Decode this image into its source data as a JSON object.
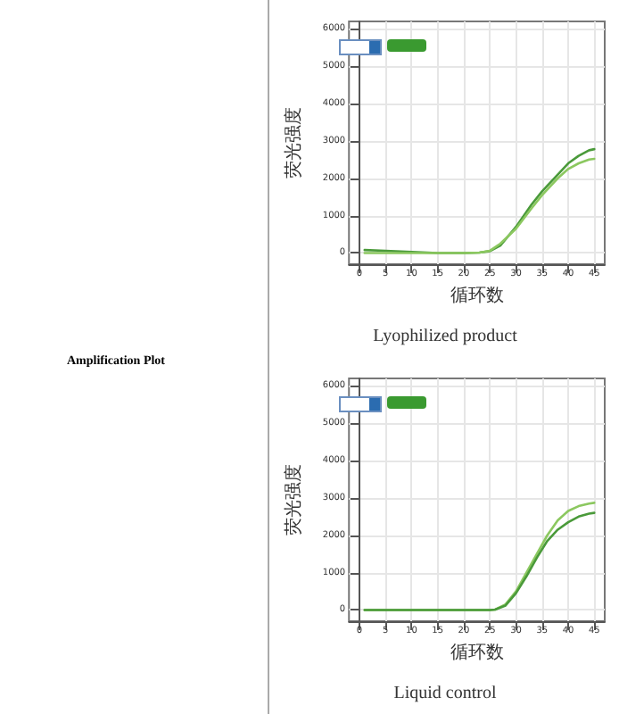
{
  "chart_data": [
    {
      "type": "line",
      "title": "Lyophilized product",
      "xlabel": "循环数",
      "ylabel": "荧光强度",
      "annotations": [
        "Amplification Plot"
      ],
      "x": [
        1,
        5,
        10,
        15,
        20,
        23,
        25,
        27,
        30,
        33,
        35,
        38,
        40,
        42,
        44,
        45
      ],
      "series": [
        {
          "color": "#4a9a3a",
          "values": [
            80,
            60,
            30,
            0,
            0,
            10,
            50,
            200,
            700,
            1300,
            1650,
            2100,
            2400,
            2600,
            2750,
            2780
          ]
        },
        {
          "color": "#8cc860",
          "values": [
            0,
            0,
            0,
            0,
            0,
            10,
            60,
            250,
            650,
            1200,
            1550,
            2000,
            2250,
            2400,
            2500,
            2520
          ]
        }
      ],
      "xlim": [
        -2,
        47
      ],
      "ylim": [
        -300,
        6200
      ],
      "xticks": [
        0,
        5,
        10,
        15,
        20,
        25,
        30,
        35,
        40,
        45
      ],
      "yticks": [
        0,
        1000,
        2000,
        3000,
        4000,
        5000,
        6000
      ],
      "grid": true,
      "marker": "none",
      "line_style": "solid"
    },
    {
      "type": "line",
      "title": "Liquid control",
      "xlabel": "循环数",
      "ylabel": "荧光强度",
      "x": [
        1,
        5,
        10,
        15,
        20,
        25,
        26,
        28,
        30,
        32,
        34,
        36,
        38,
        40,
        42,
        44,
        45
      ],
      "series": [
        {
          "color": "#8cc860",
          "values": [
            0,
            0,
            0,
            0,
            0,
            0,
            10,
            150,
            500,
            1000,
            1500,
            2000,
            2400,
            2650,
            2780,
            2850,
            2870
          ]
        },
        {
          "color": "#4a9a3a",
          "values": [
            0,
            0,
            0,
            0,
            0,
            0,
            10,
            120,
            450,
            900,
            1400,
            1850,
            2150,
            2350,
            2500,
            2580,
            2600
          ]
        }
      ],
      "xlim": [
        -2,
        47
      ],
      "ylim": [
        -300,
        6200
      ],
      "xticks": [
        0,
        5,
        10,
        15,
        20,
        25,
        30,
        35,
        40,
        45
      ],
      "yticks": [
        0,
        1000,
        2000,
        3000,
        4000,
        5000,
        6000
      ],
      "grid": true,
      "marker": "none",
      "line_style": "solid"
    }
  ]
}
